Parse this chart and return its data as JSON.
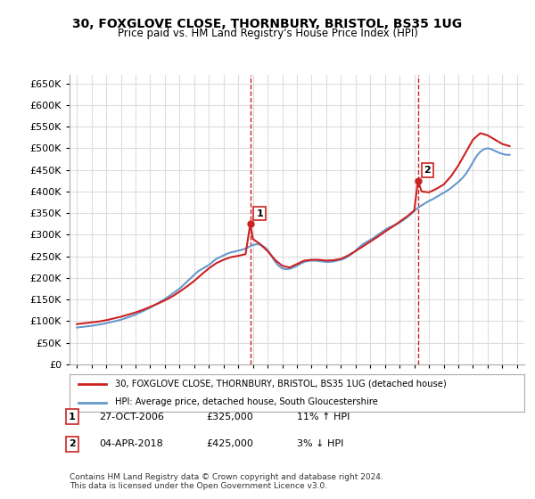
{
  "title": "30, FOXGLOVE CLOSE, THORNBURY, BRISTOL, BS35 1UG",
  "subtitle": "Price paid vs. HM Land Registry's House Price Index (HPI)",
  "legend_line1": "30, FOXGLOVE CLOSE, THORNBURY, BRISTOL, BS35 1UG (detached house)",
  "legend_line2": "HPI: Average price, detached house, South Gloucestershire",
  "footnote": "Contains HM Land Registry data © Crown copyright and database right 2024.\nThis data is licensed under the Open Government Licence v3.0.",
  "sale1_label": "1",
  "sale1_date": "27-OCT-2006",
  "sale1_price": "£325,000",
  "sale1_hpi": "11% ↑ HPI",
  "sale2_label": "2",
  "sale2_date": "04-APR-2018",
  "sale2_price": "£425,000",
  "sale2_hpi": "3% ↓ HPI",
  "sale1_x": 2006.82,
  "sale1_y": 325000,
  "sale2_x": 2018.25,
  "sale2_y": 425000,
  "vline1_x": 2006.82,
  "vline2_x": 2018.25,
  "ylim": [
    0,
    670000
  ],
  "xlim": [
    1994.5,
    2025.5
  ],
  "yticks": [
    0,
    50000,
    100000,
    150000,
    200000,
    250000,
    300000,
    350000,
    400000,
    450000,
    500000,
    550000,
    600000,
    650000
  ],
  "xticks": [
    1995,
    1996,
    1997,
    1998,
    1999,
    2000,
    2001,
    2002,
    2003,
    2004,
    2005,
    2006,
    2007,
    2008,
    2009,
    2010,
    2011,
    2012,
    2013,
    2014,
    2015,
    2016,
    2017,
    2018,
    2019,
    2020,
    2021,
    2022,
    2023,
    2024,
    2025
  ],
  "hpi_color": "#6699cc",
  "price_color": "#cc2222",
  "vline_color": "#cc2222",
  "background_color": "#ffffff",
  "grid_color": "#dddddd",
  "hpi_years": [
    1995,
    1995.25,
    1995.5,
    1995.75,
    1996,
    1996.25,
    1996.5,
    1996.75,
    1997,
    1997.25,
    1997.5,
    1997.75,
    1998,
    1998.25,
    1998.5,
    1998.75,
    1999,
    1999.25,
    1999.5,
    1999.75,
    2000,
    2000.25,
    2000.5,
    2000.75,
    2001,
    2001.25,
    2001.5,
    2001.75,
    2002,
    2002.25,
    2002.5,
    2002.75,
    2003,
    2003.25,
    2003.5,
    2003.75,
    2004,
    2004.25,
    2004.5,
    2004.75,
    2005,
    2005.25,
    2005.5,
    2005.75,
    2006,
    2006.25,
    2006.5,
    2006.75,
    2007,
    2007.25,
    2007.5,
    2007.75,
    2008,
    2008.25,
    2008.5,
    2008.75,
    2009,
    2009.25,
    2009.5,
    2009.75,
    2010,
    2010.25,
    2010.5,
    2010.75,
    2011,
    2011.25,
    2011.5,
    2011.75,
    2012,
    2012.25,
    2012.5,
    2012.75,
    2013,
    2013.25,
    2013.5,
    2013.75,
    2014,
    2014.25,
    2014.5,
    2014.75,
    2015,
    2015.25,
    2015.5,
    2015.75,
    2016,
    2016.25,
    2016.5,
    2016.75,
    2017,
    2017.25,
    2017.5,
    2017.75,
    2018,
    2018.25,
    2018.5,
    2018.75,
    2019,
    2019.25,
    2019.5,
    2019.75,
    2020,
    2020.25,
    2020.5,
    2020.75,
    2021,
    2021.25,
    2021.5,
    2021.75,
    2022,
    2022.25,
    2022.5,
    2022.75,
    2023,
    2023.25,
    2023.5,
    2023.75,
    2024,
    2024.25,
    2024.5
  ],
  "hpi_values": [
    85000,
    86000,
    87000,
    88000,
    89000,
    90500,
    92000,
    93500,
    95000,
    97000,
    99000,
    101000,
    103000,
    106000,
    109000,
    112000,
    115000,
    119000,
    123000,
    127000,
    131000,
    136000,
    141000,
    146000,
    151000,
    157000,
    163000,
    169000,
    175000,
    183000,
    191000,
    199000,
    207000,
    215000,
    220000,
    225000,
    230000,
    237000,
    244000,
    248000,
    252000,
    256000,
    259000,
    261000,
    263000,
    265000,
    268000,
    272000,
    276000,
    278000,
    277000,
    272000,
    265000,
    252000,
    238000,
    228000,
    222000,
    220000,
    221000,
    224000,
    228000,
    233000,
    237000,
    239000,
    240000,
    240000,
    239000,
    238000,
    237000,
    237000,
    238000,
    240000,
    242000,
    245000,
    250000,
    256000,
    263000,
    271000,
    278000,
    283000,
    288000,
    293000,
    299000,
    305000,
    311000,
    316000,
    320000,
    323000,
    328000,
    334000,
    340000,
    347000,
    355000,
    362000,
    368000,
    373000,
    378000,
    382000,
    387000,
    392000,
    397000,
    402000,
    408000,
    415000,
    422000,
    430000,
    440000,
    453000,
    468000,
    482000,
    492000,
    498000,
    500000,
    498000,
    494000,
    490000,
    487000,
    485000,
    485000
  ],
  "price_years": [
    1995,
    1995.5,
    1996,
    1996.5,
    1997,
    1997.5,
    1998,
    1998.5,
    1999,
    1999.5,
    2000,
    2000.5,
    2001,
    2001.5,
    2002,
    2002.5,
    2003,
    2003.5,
    2004,
    2004.5,
    2005,
    2005.5,
    2006,
    2006.5,
    2006.82,
    2007,
    2007.5,
    2008,
    2008.5,
    2009,
    2009.5,
    2010,
    2010.5,
    2011,
    2011.5,
    2012,
    2012.5,
    2013,
    2013.5,
    2014,
    2014.5,
    2015,
    2015.5,
    2016,
    2016.5,
    2017,
    2017.5,
    2018,
    2018.25,
    2018.5,
    2019,
    2019.5,
    2020,
    2020.5,
    2021,
    2021.5,
    2022,
    2022.5,
    2023,
    2023.5,
    2024,
    2024.5
  ],
  "price_values": [
    93000,
    95000,
    97000,
    99000,
    102000,
    106000,
    110000,
    115000,
    120000,
    126000,
    133000,
    140000,
    148000,
    157000,
    168000,
    180000,
    193000,
    208000,
    222000,
    234000,
    242000,
    248000,
    251000,
    255000,
    325000,
    290000,
    278000,
    262000,
    242000,
    228000,
    224000,
    232000,
    240000,
    242000,
    242000,
    240000,
    241000,
    244000,
    252000,
    262000,
    273000,
    284000,
    295000,
    307000,
    318000,
    330000,
    342000,
    356000,
    425000,
    400000,
    398000,
    406000,
    416000,
    435000,
    460000,
    490000,
    520000,
    535000,
    530000,
    520000,
    510000,
    505000
  ]
}
